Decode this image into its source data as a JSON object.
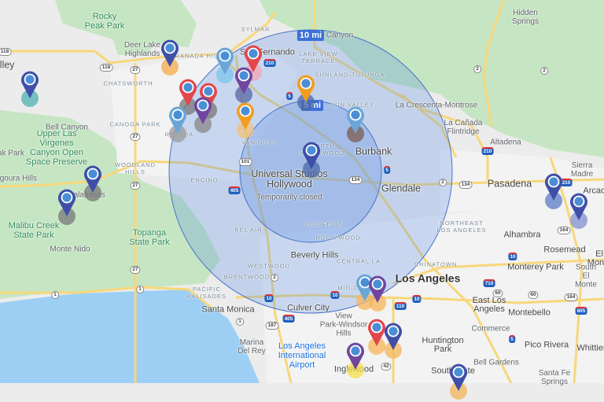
{
  "map": {
    "colors": {
      "land": "#ececec",
      "park": "#c6e6c3",
      "water": "#9dcff5",
      "highway": "#f7d77a",
      "radius_fill": "#5b8ee6",
      "radius_stroke": "#4a72c9"
    },
    "radius_labels": {
      "outer": "10 mi",
      "inner": "5 mi"
    },
    "labels": [
      "Rocky\nPeak Park",
      "Deer Lake\nHighlands",
      "GRANADA HILLS",
      "SYLMAR",
      "San Fernando",
      "CHATSWORTH",
      "Valley",
      "CANOGA PARK",
      "Bell Canyon",
      "Upper Las\nVirgenes\nCanyon Open\nSpace Preserve",
      "Oak Park",
      "WOODLAND\nHILLS",
      "Agoura Hills",
      "Calabasas",
      "ENCINO",
      "RESEDA",
      "VAN NUYS",
      "NORTH\nHOLLYWOOD",
      "Universal Studios\nHollywood",
      "Temporarily closed",
      "LAKE VIEW\nTERRACE",
      "SUNLAND-TUJUNGA",
      "SUN VALLEY",
      "Canyon",
      "Hidden\nSprings",
      "La Crescenta-Montrose",
      "La Cañada\nFlintridge",
      "Altadena",
      "Burbank",
      "Glendale",
      "Sierra Madre",
      "Pasadena",
      "Arcadia",
      "Malibu Creek\nState Park",
      "Monte Nido",
      "Topanga\nState Park",
      "BEL AIR",
      "Beverly Hills",
      "WESTWOOD",
      "BRENTWOOD",
      "LOS FELIZ",
      "HOLLYWOOD",
      "NORTHEAST\nLOS ANGELES",
      "Alhambra",
      "Rosemead",
      "El Monte",
      "CENTRAL LA",
      "CHINATOWN",
      "Los Angeles",
      "Monterey Park",
      "South El\nMonte",
      "MID-CITY",
      "PACIFIC\nPALISADES",
      "Santa Monica",
      "Culver City",
      "East Los\nAngeles",
      "Montebello",
      "Commerce",
      "Huntington\nPark",
      "Pico Rivera",
      "Whittier",
      "View\nPark-Windsor\nHills",
      "Marina\nDel Rey",
      "Los Angeles\nInternational\nAirport",
      "Inglewood",
      "Bell Gardens",
      "South Gate",
      "Santa Fe\nSprings"
    ],
    "shields": [
      "210",
      "5",
      "118",
      "118",
      "27",
      "27",
      "27",
      "27",
      "101",
      "405",
      "134",
      "5",
      "2",
      "2",
      "2",
      "134",
      "210",
      "210",
      "164",
      "10",
      "710",
      "10",
      "60",
      "60",
      "164",
      "605",
      "110",
      "10",
      "1",
      "1",
      "1",
      "2",
      "10",
      "405",
      "187",
      "5",
      "42"
    ],
    "markers": [
      {
        "color": "#3f4fa8",
        "shadow": "#4fb3b0"
      },
      {
        "color": "#3f4fa8",
        "shadow": "#f5a94a"
      },
      {
        "color": "#6aa7d8",
        "shadow": "#7cc6ec"
      },
      {
        "color": "#e2474b",
        "shadow": "#f3a5b5"
      },
      {
        "color": "#7046a0",
        "shadow": "#5866a8"
      },
      {
        "color": "#e2474b",
        "shadow": "#777777"
      },
      {
        "color": "#e2474b",
        "shadow": "#777777"
      },
      {
        "color": "#7046a0",
        "shadow": "#888888"
      },
      {
        "color": "#6aa7d8",
        "shadow": "#999999"
      },
      {
        "color": "#f39c1f",
        "shadow": "#f2c27a"
      },
      {
        "color": "#f39c1f",
        "shadow": "#4c6aa8"
      },
      {
        "color": "#6aa7d8",
        "shadow": "#7d5a4e"
      },
      {
        "color": "#3f4fa8",
        "shadow": "#4c6aa8"
      },
      {
        "color": "#3f4fa8",
        "shadow": "#777777"
      },
      {
        "color": "#3f4fa8",
        "shadow": "#777777"
      },
      {
        "color": "#3f4fa8",
        "shadow": "#5c7cc8"
      },
      {
        "color": "#3f4fa8",
        "shadow": "#7f8fcf"
      },
      {
        "color": "#6aa7d8",
        "shadow": "#f5b55a"
      },
      {
        "color": "#7046a0",
        "shadow": "#f5b55a"
      },
      {
        "color": "#e2474b",
        "shadow": "#f5b55a"
      },
      {
        "color": "#3f4fa8",
        "shadow": "#f5b55a"
      },
      {
        "color": "#7046a0",
        "shadow": "#f5df4a"
      },
      {
        "color": "#3f4fa8",
        "shadow": "#f5b55a"
      }
    ]
  }
}
